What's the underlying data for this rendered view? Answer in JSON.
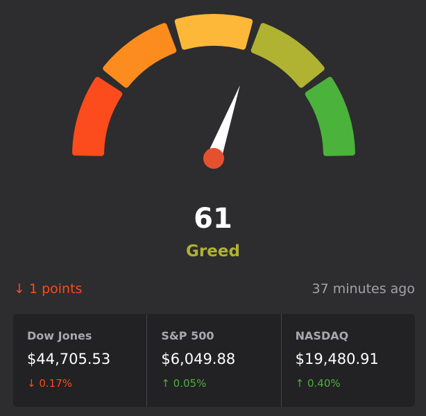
{
  "gauge": {
    "value": 61,
    "scale": [
      0,
      100
    ],
    "label": "Greed",
    "segment_colors": [
      "#fc4b1c",
      "#fc8c1e",
      "#fdb83a",
      "#b0b232",
      "#4bb23c"
    ]
  },
  "change": "↓ 1 points",
  "updated": "37 minutes ago",
  "indices": [
    {
      "name": "Dow Jones",
      "price": "$44,705.53",
      "change": "↓ 0.17%"
    },
    {
      "name": "S&P 500",
      "price": "$6,049.88",
      "change": "↑ 0.05%"
    },
    {
      "name": "NASDAQ",
      "price": "$19,480.91",
      "change": "↑ 0.40%"
    }
  ]
}
